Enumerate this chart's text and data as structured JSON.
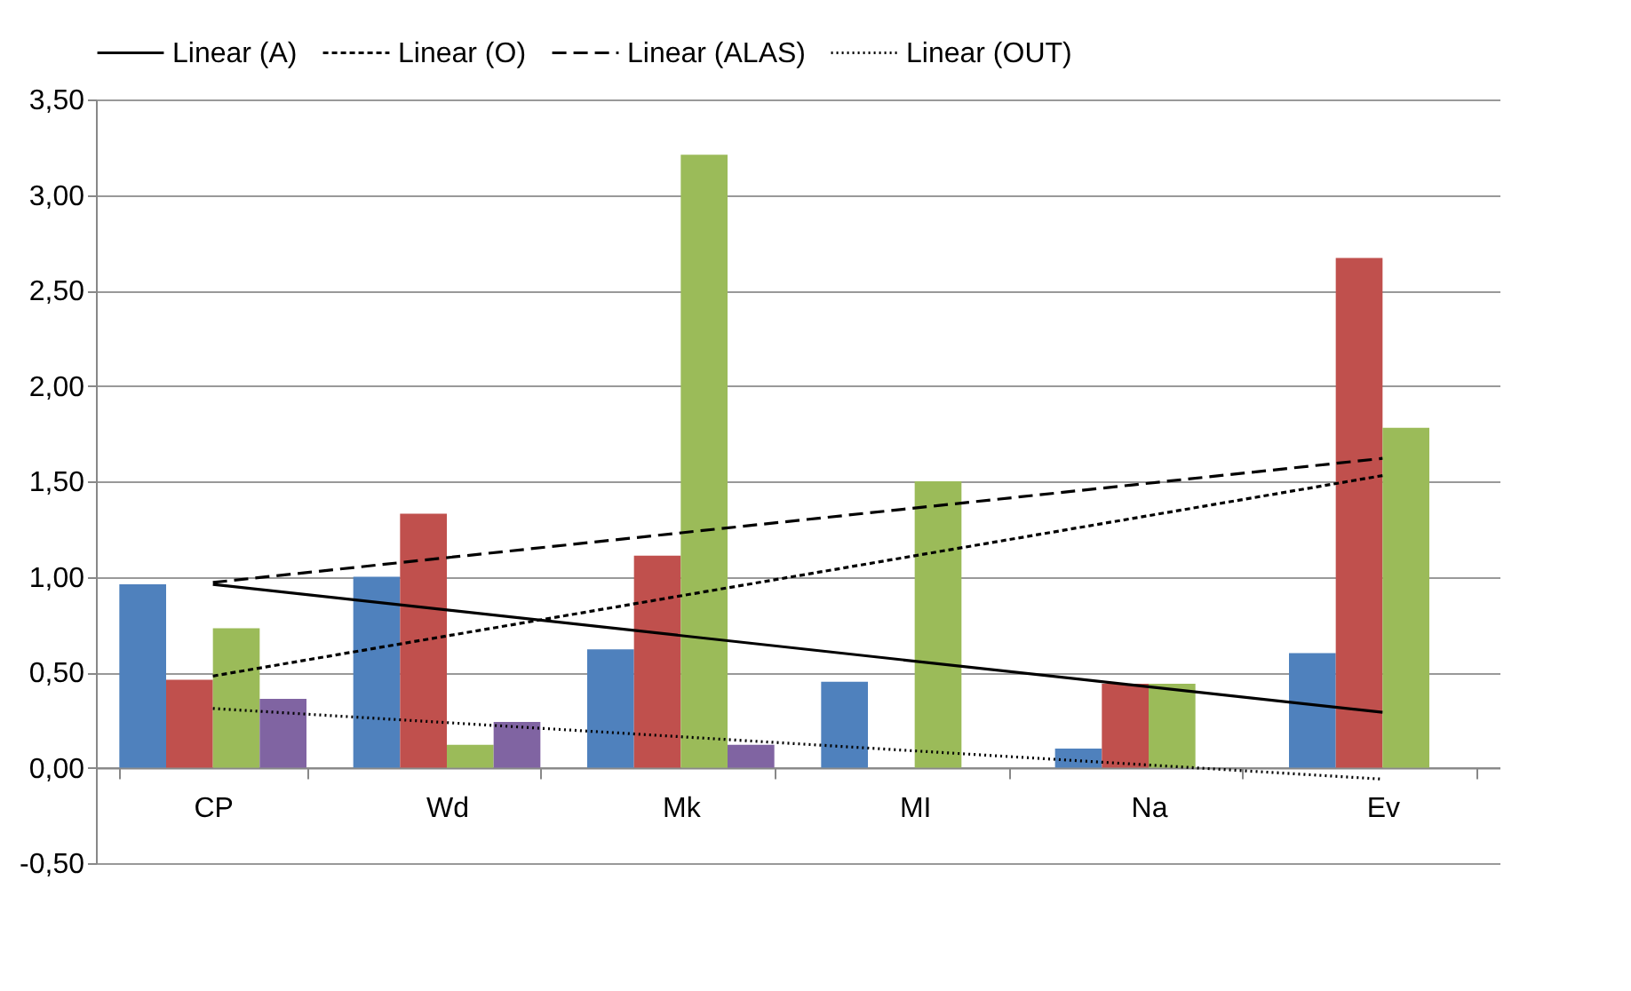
{
  "chart_data": {
    "type": "bar",
    "categories": [
      "CP",
      "Wd",
      "Mk",
      "MI",
      "Na",
      "Ev"
    ],
    "series": [
      {
        "color": "#4f81bd",
        "values": [
          0.96,
          1.0,
          0.62,
          0.45,
          0.1,
          0.6
        ]
      },
      {
        "color": "#c0504d",
        "values": [
          0.46,
          1.33,
          1.11,
          0,
          0.44,
          2.67
        ]
      },
      {
        "color": "#9bbb59",
        "values": [
          0.73,
          0.12,
          3.21,
          1.5,
          0.44,
          1.78
        ]
      },
      {
        "color": "#8064a2",
        "values": [
          0.36,
          0.24,
          0.12,
          0,
          0,
          0
        ]
      },
      {
        "name": "Linear (A)",
        "type": "line",
        "line_style": "solid",
        "color": "#000000",
        "x": [
          "CP",
          "Ev"
        ],
        "values": [
          0.96,
          0.29
        ]
      },
      {
        "name": "Linear (O)",
        "type": "line",
        "line_style": "dashed",
        "color": "#000000",
        "x": [
          "CP",
          "Ev"
        ],
        "values": [
          0.48,
          1.53
        ]
      },
      {
        "name": "Linear (ALAS)",
        "type": "line",
        "line_style": "dashed",
        "color": "#000000",
        "x": [
          "CP",
          "Ev"
        ],
        "values": [
          0.97,
          1.62
        ]
      },
      {
        "name": "Linear (OUT)",
        "type": "line",
        "line_style": "dotted",
        "color": "#000000",
        "x": [
          "CP",
          "Ev"
        ],
        "values": [
          0.31,
          -0.06
        ]
      }
    ],
    "ylim": [
      -0.5,
      3.5
    ],
    "yticks": [
      {
        "value": -0.5,
        "label": "-0,50"
      },
      {
        "value": 0,
        "label": "0,00"
      },
      {
        "value": 0.5,
        "label": "0,50"
      },
      {
        "value": 1,
        "label": "1,00"
      },
      {
        "value": 1.5,
        "label": "1,50"
      },
      {
        "value": 2,
        "label": "2,00"
      },
      {
        "value": 2.5,
        "label": "2,50"
      },
      {
        "value": 3,
        "label": "3,00"
      },
      {
        "value": 3.5,
        "label": "3,50"
      }
    ],
    "grid": "y",
    "legend": "top"
  }
}
